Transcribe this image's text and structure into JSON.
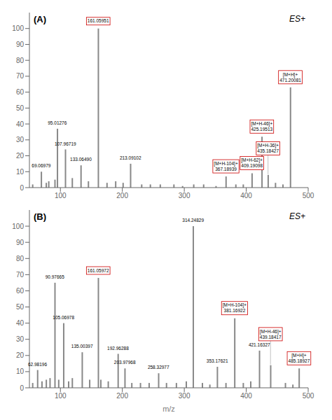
{
  "chart_data": [
    {
      "type": "bar",
      "title": "(A)",
      "subtitle": "ES+",
      "x": [
        55,
        77,
        81,
        91,
        119,
        145,
        175,
        189,
        201,
        231,
        245,
        261,
        283,
        297,
        315,
        331,
        351,
        383,
        395,
        447,
        459,
        69.06979,
        95.01276,
        107.96719,
        133.0649,
        161.05951,
        213.09102,
        367.18939,
        409.19098,
        425.19513,
        435.18427,
        471.20081
      ],
      "values": [
        2,
        3,
        4,
        5,
        6,
        4,
        3,
        4,
        3,
        2,
        2,
        2,
        2,
        1,
        2,
        2,
        1,
        2,
        2,
        3,
        2,
        10,
        37,
        24,
        14,
        100,
        15,
        7,
        9,
        32,
        8,
        63
      ],
      "color": "#888888",
      "xlim": [
        50,
        500
      ],
      "xticks": [
        100,
        200,
        300,
        400,
        500
      ],
      "ylim": [
        0,
        110
      ],
      "yticks": [
        0,
        10,
        20,
        30,
        40,
        50,
        60,
        70,
        80,
        90,
        100
      ],
      "grid": false,
      "annotations": [
        {
          "text": "69.06979",
          "x": 69.06979,
          "y": 10
        },
        {
          "text": "95.01276",
          "x": 95.01276,
          "y": 37
        },
        {
          "text": "107.96719",
          "x": 107.96719,
          "y": 24
        },
        {
          "text": "133.06490",
          "x": 133.0649,
          "y": 14
        },
        {
          "text": "161.05951",
          "x": 161.05951,
          "y": 100,
          "color": "#cc0000"
        },
        {
          "text": "213.09102",
          "x": 213.09102,
          "y": 15
        },
        {
          "text": "[M+H-104]+\n367.18939",
          "x": 367.18939,
          "y": 7,
          "color": "#cc0000"
        },
        {
          "text": "[M+H-62]+\n409.19098",
          "x": 409.19098,
          "y": 9,
          "color": "#cc0000"
        },
        {
          "text": "[M+H-46]+\n425.19513",
          "x": 425.19513,
          "y": 32,
          "color": "#cc0000"
        },
        {
          "text": "[M+H-36]+\n435.18427",
          "x": 435.18427,
          "y": 8,
          "color": "#cc0000"
        },
        {
          "text": "[M+H]+\n471.20081",
          "x": 471.20081,
          "y": 63,
          "color": "#cc0000"
        }
      ]
    },
    {
      "type": "bar",
      "title": "(B)",
      "subtitle": "ES+",
      "x_label": "m/z",
      "x": [
        55,
        70,
        77,
        83,
        97,
        113,
        119,
        147,
        165,
        177,
        215,
        229,
        243,
        271,
        287,
        303,
        329,
        341,
        367,
        395,
        407,
        463,
        475,
        62.98196,
        90.97665,
        105.06978,
        135.00397,
        161.05972,
        192.96288,
        203.97968,
        258.32977,
        314.24829,
        353.17621,
        381.16922,
        421.16327,
        439.18417,
        485.18927
      ],
      "values": [
        3,
        4,
        5,
        6,
        5,
        4,
        6,
        5,
        5,
        4,
        3,
        3,
        3,
        3,
        3,
        4,
        3,
        2,
        3,
        3,
        4,
        3,
        2,
        11,
        65,
        40,
        22,
        68,
        21,
        12,
        9,
        100,
        13,
        43,
        23,
        14,
        12
      ],
      "color": "#888888",
      "xlim": [
        50,
        500
      ],
      "xticks": [
        100,
        200,
        300,
        400,
        500
      ],
      "ylim": [
        0,
        110
      ],
      "yticks": [
        0,
        10,
        20,
        30,
        40,
        50,
        60,
        70,
        80,
        90,
        100
      ],
      "grid": false,
      "annotations": [
        {
          "text": "62.98196",
          "x": 62.98196,
          "y": 11
        },
        {
          "text": "90.97665",
          "x": 90.97665,
          "y": 65
        },
        {
          "text": "105.06978",
          "x": 105.06978,
          "y": 40
        },
        {
          "text": "135.00397",
          "x": 135.00397,
          "y": 22
        },
        {
          "text": "161.05972",
          "x": 161.05972,
          "y": 68,
          "color": "#cc0000"
        },
        {
          "text": "192.96288",
          "x": 192.96288,
          "y": 21
        },
        {
          "text": "203.97968",
          "x": 203.97968,
          "y": 12
        },
        {
          "text": "258.32977",
          "x": 258.32977,
          "y": 9
        },
        {
          "text": "314.24829",
          "x": 314.24829,
          "y": 100
        },
        {
          "text": "353.17621",
          "x": 353.17621,
          "y": 13
        },
        {
          "text": "[M+H-104]+\n381.16922",
          "x": 381.16922,
          "y": 43,
          "color": "#cc0000"
        },
        {
          "text": "421.16327",
          "x": 421.16327,
          "y": 23
        },
        {
          "text": "[M+H-46]+\n439.18417",
          "x": 439.18417,
          "y": 14,
          "color": "#cc0000"
        },
        {
          "text": "[M+H]+\n485.18927",
          "x": 485.18927,
          "y": 12,
          "color": "#cc0000"
        }
      ]
    }
  ]
}
